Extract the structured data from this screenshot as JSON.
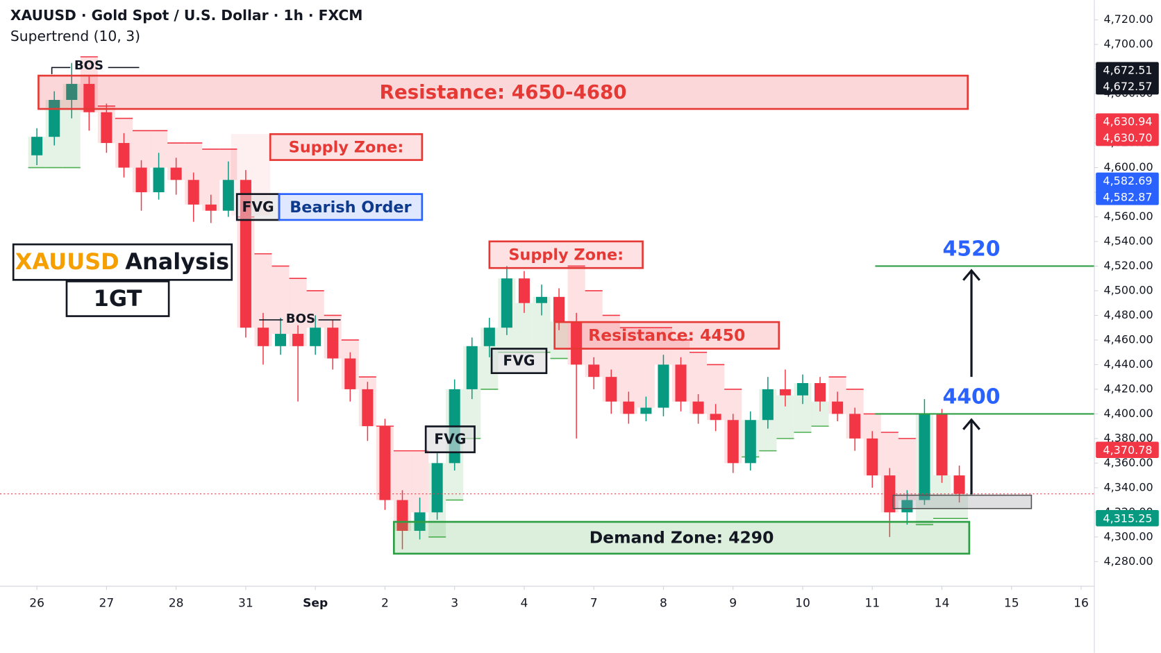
{
  "chart_data": {
    "type": "candlestick",
    "title": "XAUUSD · Gold Spot / U.S. Dollar · 1h · FXCM",
    "indicator": "Supertrend (10, 3)",
    "x": [
      0,
      0.25,
      0.5,
      0.75,
      1,
      1.25,
      1.5,
      1.75,
      2,
      2.25,
      2.5,
      2.75,
      3,
      3.25,
      3.5,
      3.75,
      4,
      4.25,
      4.5,
      4.75,
      5,
      5.25,
      5.5,
      5.75,
      6,
      6.25,
      6.5,
      6.75,
      7,
      7.25,
      7.5,
      7.75,
      8,
      8.25,
      8.5,
      8.75,
      9,
      9.25,
      9.5,
      9.75,
      10,
      10.25,
      10.5,
      10.75,
      11,
      11.25,
      11.5,
      11.75,
      12,
      12.25,
      12.5,
      12.75,
      13,
      13.25
    ],
    "open": [
      4610,
      4625,
      4655,
      4668,
      4645,
      4620,
      4600,
      4580,
      4600,
      4590,
      4570,
      4565,
      4590,
      4470,
      4455,
      4465,
      4455,
      4470,
      4445,
      4420,
      4390,
      4330,
      4305,
      4320,
      4360,
      4420,
      4455,
      4470,
      4510,
      4490,
      4495,
      4475,
      4440,
      4430,
      4410,
      4400,
      4405,
      4440,
      4410,
      4400,
      4395,
      4360,
      4395,
      4420,
      4415,
      4425,
      4410,
      4400,
      4380,
      4350,
      4320,
      4330,
      4400,
      4350
    ],
    "high": [
      4632,
      4662,
      4685,
      4674,
      4652,
      4628,
      4606,
      4612,
      4608,
      4596,
      4578,
      4605,
      4598,
      4482,
      4478,
      4472,
      4480,
      4476,
      4450,
      4426,
      4396,
      4338,
      4332,
      4368,
      4428,
      4462,
      4478,
      4520,
      4516,
      4505,
      4502,
      4482,
      4446,
      4436,
      4418,
      4414,
      4448,
      4446,
      4416,
      4408,
      4400,
      4402,
      4430,
      4436,
      4432,
      4430,
      4418,
      4405,
      4386,
      4356,
      4338,
      4412,
      4404,
      4358
    ],
    "low": [
      4602,
      4618,
      4640,
      4630,
      4612,
      4592,
      4565,
      4574,
      4578,
      4556,
      4555,
      4560,
      4462,
      4440,
      4448,
      4410,
      4448,
      4436,
      4410,
      4378,
      4322,
      4290,
      4298,
      4314,
      4354,
      4412,
      4446,
      4464,
      4482,
      4480,
      4468,
      4380,
      4420,
      4400,
      4392,
      4394,
      4398,
      4402,
      4392,
      4386,
      4352,
      4354,
      4388,
      4406,
      4408,
      4402,
      4394,
      4370,
      4340,
      4300,
      4310,
      4326,
      4344,
      4328
    ],
    "close": [
      4625,
      4655,
      4668,
      4645,
      4620,
      4600,
      4580,
      4600,
      4590,
      4570,
      4565,
      4590,
      4470,
      4455,
      4465,
      4455,
      4470,
      4445,
      4420,
      4390,
      4330,
      4305,
      4320,
      4360,
      4420,
      4455,
      4470,
      4510,
      4490,
      4495,
      4475,
      4440,
      4430,
      4410,
      4400,
      4405,
      4440,
      4410,
      4400,
      4395,
      4360,
      4395,
      4420,
      4415,
      4425,
      4410,
      4400,
      4380,
      4350,
      4320,
      4330,
      4400,
      4350,
      4335
    ],
    "up_color": "#089981",
    "down_color": "#f23645",
    "supertrend": {
      "values": [
        4600,
        4600,
        4600,
        4690,
        4650,
        4640,
        4630,
        4630,
        4620,
        4620,
        4615,
        4615,
        4560,
        4530,
        4520,
        4510,
        4500,
        4480,
        4460,
        4430,
        4390,
        4370,
        4370,
        4300,
        4330,
        4380,
        4420,
        4450,
        4450,
        4450,
        4445,
        4520,
        4500,
        4480,
        4470,
        4470,
        4470,
        4460,
        4450,
        4440,
        4420,
        4365,
        4370,
        4380,
        4385,
        4390,
        4430,
        4420,
        4400,
        4385,
        4380,
        4310,
        4315,
        4315
      ],
      "up_color": "#4caf50",
      "down_color": "#f23645"
    },
    "xlim": [
      -0.53,
      15.19
    ],
    "ylim": [
      4260,
      4736
    ],
    "xticks": [
      {
        "value": 0,
        "label": "26"
      },
      {
        "value": 1,
        "label": "27"
      },
      {
        "value": 2,
        "label": "28"
      },
      {
        "value": 3,
        "label": "31"
      },
      {
        "value": 4,
        "label": "Sep"
      },
      {
        "value": 5,
        "label": "2"
      },
      {
        "value": 6,
        "label": "3"
      },
      {
        "value": 7,
        "label": "4"
      },
      {
        "value": 8,
        "label": "7"
      },
      {
        "value": 9,
        "label": "8"
      },
      {
        "value": 10,
        "label": "9"
      },
      {
        "value": 11,
        "label": "10"
      },
      {
        "value": 12,
        "label": "11"
      },
      {
        "value": 13,
        "label": "14"
      },
      {
        "value": 14,
        "label": "15"
      },
      {
        "value": 15,
        "label": "16"
      }
    ],
    "yticks": [
      {
        "value": 4280,
        "label": "4,280.00"
      },
      {
        "value": 4300,
        "label": "4,300.00"
      },
      {
        "value": 4320,
        "label": "4,320.00"
      },
      {
        "value": 4340,
        "label": "4,340.00"
      },
      {
        "value": 4360,
        "label": "4,360.00"
      },
      {
        "value": 4380,
        "label": "4,380.00"
      },
      {
        "value": 4400,
        "label": "4,400.00"
      },
      {
        "value": 4420,
        "label": "4,420.00"
      },
      {
        "value": 4440,
        "label": "4,440.00"
      },
      {
        "value": 4460,
        "label": "4,460.00"
      },
      {
        "value": 4480,
        "label": "4,480.00"
      },
      {
        "value": 4500,
        "label": "4,500.00"
      },
      {
        "value": 4520,
        "label": "4,520.00"
      },
      {
        "value": 4540,
        "label": "4,540.00"
      },
      {
        "value": 4560,
        "label": "4,560.00"
      },
      {
        "value": 4580,
        "label": "4,580.00"
      },
      {
        "value": 4600,
        "label": "4,600.00"
      },
      {
        "value": 4620,
        "label": "4,620.00"
      },
      {
        "value": 4640,
        "label": "4,640.00"
      },
      {
        "value": 4660,
        "label": "4,660.00"
      },
      {
        "value": 4680,
        "label": "4,680.00"
      },
      {
        "value": 4700,
        "label": "4,700.00"
      },
      {
        "value": 4720,
        "label": "4,720.00"
      }
    ],
    "price_tags": [
      {
        "color": "#131722",
        "labels": [
          {
            "value": 4672.51,
            "label": "4,672.51"
          },
          {
            "value": 4672.57,
            "label": "4,672.57"
          }
        ]
      },
      {
        "color": "#f23645",
        "labels": [
          {
            "value": 4630.94,
            "label": "4,630.94"
          },
          {
            "value": 4630.7,
            "label": "4,630.70"
          }
        ]
      },
      {
        "color": "#2962ff",
        "labels": [
          {
            "value": 4582.69,
            "label": "4,582.69"
          },
          {
            "value": 4582.87,
            "label": "4,582.87"
          }
        ]
      },
      {
        "color": "#f23645",
        "labels": [
          {
            "value": 4370.78,
            "label": "4,370.78"
          }
        ]
      },
      {
        "color": "#089981",
        "labels": [
          {
            "value": 4315.25,
            "label": "4,315.25"
          }
        ]
      }
    ],
    "targets": [
      4520,
      4400
    ],
    "annotations": [
      "Resistance: 4650-4680",
      "Supply Zone:",
      "FVG",
      "Bearish Order",
      "Supply Zone:",
      "FVG",
      "Resistance: 4450",
      "FVG",
      "Demand Zone: 4290",
      "BOS",
      "BOS",
      "XAUUSD",
      "Analysis",
      "1GT"
    ]
  }
}
